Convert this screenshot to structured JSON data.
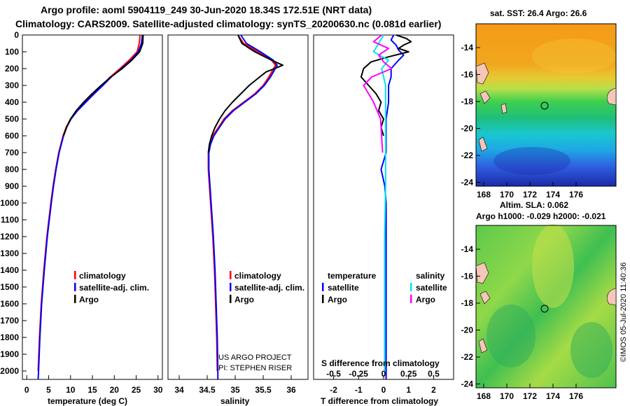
{
  "header": {
    "title_line1": "Argo profile: aoml 5904119_249 30-Jun-2020 18.34S 172.51E (NRT data)",
    "title_line2": "Climatology: CARS2009. Satellite-adjusted climatology: synTS_20200630.nc (0.081d earlier)"
  },
  "map_top": {
    "title": "sat. SST: 26.4 Argo: 26.6",
    "lat_ticks": [
      "-14",
      "-16",
      "-18",
      "-20",
      "-22",
      "-24"
    ],
    "lon_ticks": [
      "168",
      "170",
      "172",
      "174",
      "176"
    ]
  },
  "map_bottom": {
    "title1": "Altim. SLA: 0.062",
    "title2": "Argo h1000: -0.029 h2000: -0.021",
    "lat_ticks": [
      "-14",
      "-16",
      "-18",
      "-20",
      "-22",
      "-24"
    ],
    "lon_ticks": [
      "168",
      "170",
      "172",
      "174",
      "176"
    ]
  },
  "credit": "©IMOS 05-Jul-2020 11:40:36",
  "colors": {
    "climatology": "#ff0000",
    "satellite": "#0000ff",
    "argo": "#000000",
    "salinity_sat": "#00e5ee",
    "salinity_argo": "#ff00ff"
  },
  "chart_data": [
    {
      "type": "line",
      "xlabel": "temperature (deg C)",
      "ylabel": "",
      "xlim": [
        -1,
        31
      ],
      "ylim": [
        2050,
        0
      ],
      "x_ticks": [
        0,
        5,
        10,
        15,
        20,
        25,
        30
      ],
      "x_tick_labels": [
        "0",
        "5",
        "10",
        "15",
        "20",
        "25",
        "30"
      ],
      "y_ticks": [
        0,
        100,
        200,
        300,
        400,
        500,
        600,
        700,
        800,
        900,
        1000,
        1100,
        1200,
        1300,
        1400,
        1500,
        1600,
        1700,
        1800,
        1900,
        2000
      ],
      "y_tick_labels": [
        "0",
        "100",
        "200",
        "300",
        "400",
        "500",
        "600",
        "700",
        "800",
        "900",
        "1000",
        "1100",
        "1200",
        "1300",
        "1400",
        "1500",
        "1600",
        "1700",
        "1800",
        "1900",
        "2000"
      ],
      "legend": [
        "climatology",
        "satellite-adj. clim.",
        "Argo"
      ],
      "series": [
        {
          "name": "climatology",
          "color": "#ff0000",
          "depth": [
            0,
            50,
            100,
            150,
            200,
            250,
            300,
            350,
            400,
            450,
            500,
            550,
            600,
            700,
            800,
            900,
            1000,
            1200,
            1400,
            1600,
            1800,
            2000
          ],
          "values": [
            25.9,
            25.7,
            25.2,
            23.4,
            21.3,
            19.1,
            17.2,
            15.2,
            13.3,
            11.4,
            10.0,
            9.0,
            8.3,
            7.3,
            6.6,
            6.0,
            5.5,
            4.6,
            3.9,
            3.3,
            2.9,
            2.6
          ]
        },
        {
          "name": "satellite-adj. clim.",
          "color": "#0000ff",
          "depth": [
            0,
            50,
            100,
            150,
            200,
            250,
            300,
            350,
            400,
            450,
            500,
            550,
            600,
            700,
            800,
            900,
            1000,
            1200,
            1400,
            1600,
            1800,
            2000,
            2050
          ],
          "values": [
            26.4,
            26.2,
            25.5,
            23.8,
            21.6,
            19.3,
            17.4,
            15.4,
            13.5,
            11.6,
            10.1,
            9.1,
            8.4,
            7.4,
            6.7,
            6.1,
            5.6,
            4.7,
            4.0,
            3.4,
            3.0,
            2.7,
            2.6
          ]
        },
        {
          "name": "Argo",
          "color": "#000000",
          "depth": [
            0,
            50,
            100,
            150,
            200,
            250,
            300,
            350,
            400,
            450,
            500,
            550,
            600
          ],
          "values": [
            26.6,
            26.5,
            25.8,
            24.0,
            21.8,
            19.2,
            17.0,
            14.9,
            13.0,
            11.3,
            10.0,
            9.1,
            8.4
          ]
        }
      ]
    },
    {
      "type": "line",
      "xlabel": "salinity",
      "xlim": [
        33.8,
        36.3
      ],
      "ylim": [
        2050,
        0
      ],
      "x_ticks": [
        34,
        34.5,
        35,
        35.5,
        36
      ],
      "x_tick_labels": [
        "34",
        "34.5",
        "35",
        "35.5",
        "36"
      ],
      "legend": [
        "climatology",
        "satellite-adj. clim.",
        "Argo"
      ],
      "annotation": [
        "US ARGO PROJECT",
        "PI: STEPHEN RISER"
      ],
      "series": [
        {
          "name": "climatology",
          "color": "#ff0000",
          "depth": [
            0,
            50,
            100,
            150,
            180,
            250,
            300,
            350,
            400,
            450,
            500,
            550,
            600,
            650,
            700,
            800,
            900,
            1000,
            1200,
            1400,
            1600,
            1800,
            2000
          ],
          "values": [
            35.05,
            35.15,
            35.4,
            35.65,
            35.72,
            35.6,
            35.5,
            35.35,
            35.15,
            34.95,
            34.8,
            34.7,
            34.6,
            34.55,
            34.52,
            34.52,
            34.54,
            34.56,
            34.6,
            34.63,
            34.65,
            34.67,
            34.68
          ]
        },
        {
          "name": "satellite-adj. clim.",
          "color": "#0000ff",
          "depth": [
            0,
            50,
            100,
            150,
            180,
            250,
            300,
            350,
            400,
            450,
            500,
            550,
            600,
            650,
            700,
            800,
            900,
            1000,
            1200,
            1400,
            1600,
            1800,
            2000,
            2050
          ],
          "values": [
            35.1,
            35.2,
            35.45,
            35.68,
            35.75,
            35.63,
            35.52,
            35.37,
            35.17,
            34.97,
            34.82,
            34.72,
            34.62,
            34.56,
            34.53,
            34.53,
            34.55,
            34.57,
            34.61,
            34.64,
            34.66,
            34.68,
            34.69,
            34.69
          ]
        },
        {
          "name": "Argo",
          "color": "#000000",
          "depth": [
            0,
            50,
            100,
            150,
            180,
            220,
            260,
            300,
            350,
            400,
            450,
            500,
            550,
            600,
            650,
            700
          ],
          "values": [
            35.05,
            35.12,
            35.35,
            35.65,
            35.85,
            35.55,
            35.4,
            35.25,
            35.1,
            34.95,
            34.82,
            34.72,
            34.64,
            34.58,
            34.54,
            34.52
          ]
        }
      ]
    },
    {
      "type": "line",
      "xlabel": "T difference from climatology",
      "xlim": [
        -2.8,
        2.8
      ],
      "ylim": [
        2050,
        0
      ],
      "x_ticks": [
        -2,
        -1,
        0,
        1,
        2
      ],
      "x_tick_labels": [
        "-2",
        "-1",
        "0",
        "1",
        "2"
      ],
      "secondary_axis_label": "S difference from climatology",
      "secondary_x_ticks": [
        -0.5,
        -0.25,
        0,
        0.25,
        0.5
      ],
      "secondary_x_tick_labels": [
        "-0.5",
        "-0.25",
        "0",
        "0.25",
        "0.5"
      ],
      "legend_temperature": {
        "title": "temperature",
        "items": [
          "satellite",
          "Argo"
        ]
      },
      "legend_salinity": {
        "title": "salinity",
        "items": [
          "satellite",
          "Argo"
        ]
      },
      "series": [
        {
          "name": "temperature satellite",
          "color": "#0000ff",
          "depth": [
            0,
            30,
            60,
            90,
            120,
            150,
            200,
            250,
            300,
            400,
            500,
            600,
            700,
            800,
            900,
            1000,
            1500,
            2000,
            2050
          ],
          "values": [
            0.4,
            0.3,
            0.5,
            0.6,
            0.8,
            0.6,
            0.3,
            0.3,
            0.2,
            0.2,
            0.1,
            0.1,
            0.1,
            -0.1,
            0.05,
            0.1,
            0.1,
            0.1,
            0.1
          ]
        },
        {
          "name": "temperature Argo",
          "color": "#000000",
          "depth": [
            0,
            20,
            40,
            60,
            80,
            100,
            130,
            160,
            200,
            250,
            300,
            350,
            400,
            450,
            500,
            550,
            600
          ],
          "values": [
            0.5,
            0.9,
            1.1,
            0.8,
            0.6,
            1.0,
            0.2,
            -0.5,
            -0.8,
            -0.9,
            -0.6,
            -0.3,
            -0.1,
            -0.2,
            0.0,
            -0.1,
            0.0
          ]
        },
        {
          "name": "salinity satellite",
          "color": "#00e5ee",
          "depth": [
            0,
            50,
            100,
            150,
            200,
            300,
            400,
            500,
            600,
            700,
            900,
            1200,
            2000
          ],
          "values": [
            0.0,
            -0.05,
            -0.1,
            0.05,
            -0.02,
            0.02,
            0.02,
            0.02,
            0.02,
            0.02,
            0.02,
            0.01,
            0.01
          ]
        },
        {
          "name": "salinity Argo",
          "color": "#ff00ff",
          "depth": [
            0,
            40,
            80,
            120,
            160,
            200,
            250,
            300,
            350,
            400,
            500,
            600,
            700
          ],
          "values": [
            -0.02,
            -0.1,
            0.05,
            -0.05,
            0.0,
            0.08,
            -0.12,
            -0.2,
            -0.15,
            -0.1,
            -0.03,
            -0.02,
            -0.01
          ]
        }
      ]
    }
  ]
}
